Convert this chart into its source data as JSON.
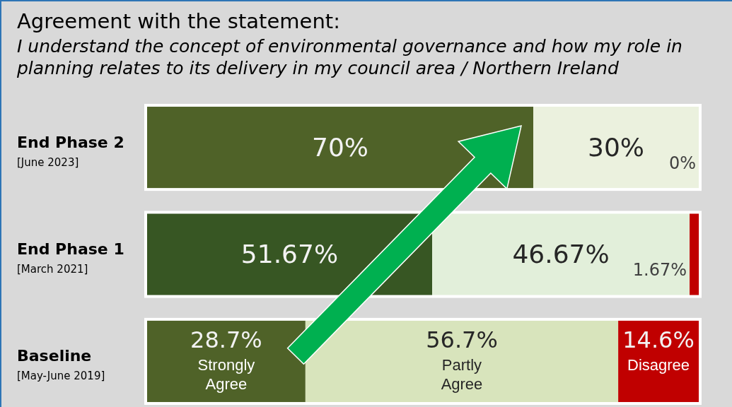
{
  "chart_data": {
    "type": "bar",
    "orientation": "horizontal",
    "stacked": true,
    "title": "Agreement with the statement:",
    "subtitle": "I understand the concept of environmental governance and how my role in planning relates to its delivery in my council area / Northern Ireland",
    "categories": [
      "End Phase 2\n[June 2023]",
      "End Phase 1\n[March 2021]",
      "Baseline\n[May-June 2019]"
    ],
    "series": [
      {
        "name": "Strongly Agree",
        "colors": [
          "#4f6228",
          "#375623",
          "#4f6228"
        ],
        "values": [
          70,
          51.67,
          28.7
        ],
        "value_labels": [
          "70%",
          "51.67%",
          "28.7%"
        ]
      },
      {
        "name": "Partly Agree",
        "colors": [
          "#ebf1de",
          "#e2efda",
          "#d8e4bc"
        ],
        "values": [
          30,
          46.67,
          56.7
        ],
        "value_labels": [
          "30%",
          "46.67%",
          "56.7%"
        ]
      },
      {
        "name": "Disagree",
        "colors": [
          "#c00000",
          "#c00000",
          "#c00000"
        ],
        "values": [
          0,
          1.67,
          14.6
        ],
        "value_labels": [
          "0%",
          "1.67%",
          "14.6%"
        ]
      }
    ],
    "xlim": [
      0,
      100
    ],
    "legend": false
  }
}
